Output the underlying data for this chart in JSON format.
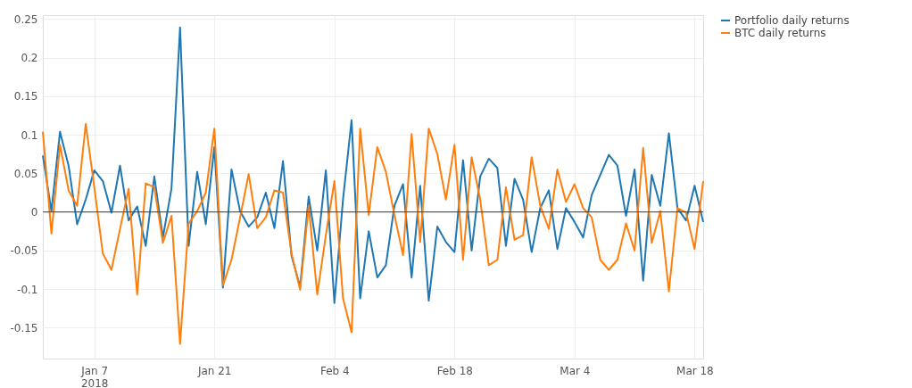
{
  "chart_data": {
    "type": "line",
    "x": [
      "2018-01-01",
      "2018-01-02",
      "2018-01-03",
      "2018-01-04",
      "2018-01-05",
      "2018-01-06",
      "2018-01-07",
      "2018-01-08",
      "2018-01-09",
      "2018-01-10",
      "2018-01-11",
      "2018-01-12",
      "2018-01-13",
      "2018-01-14",
      "2018-01-15",
      "2018-01-16",
      "2018-01-17",
      "2018-01-18",
      "2018-01-19",
      "2018-01-20",
      "2018-01-21",
      "2018-01-22",
      "2018-01-23",
      "2018-01-24",
      "2018-01-25",
      "2018-01-26",
      "2018-01-27",
      "2018-01-28",
      "2018-01-29",
      "2018-01-30",
      "2018-01-31",
      "2018-02-01",
      "2018-02-02",
      "2018-02-03",
      "2018-02-04",
      "2018-02-05",
      "2018-02-06",
      "2018-02-07",
      "2018-02-08",
      "2018-02-09",
      "2018-02-10",
      "2018-02-11",
      "2018-02-12",
      "2018-02-13",
      "2018-02-14",
      "2018-02-15",
      "2018-02-16",
      "2018-02-17",
      "2018-02-18",
      "2018-02-19",
      "2018-02-20",
      "2018-02-21",
      "2018-02-22",
      "2018-02-23",
      "2018-02-24",
      "2018-02-25",
      "2018-02-26",
      "2018-02-27",
      "2018-02-28",
      "2018-03-01",
      "2018-03-02",
      "2018-03-03",
      "2018-03-04",
      "2018-03-05",
      "2018-03-06",
      "2018-03-07",
      "2018-03-08",
      "2018-03-09",
      "2018-03-10",
      "2018-03-11",
      "2018-03-12",
      "2018-03-13",
      "2018-03-14",
      "2018-03-15",
      "2018-03-16",
      "2018-03-17",
      "2018-03-18",
      "2018-03-19"
    ],
    "series": [
      {
        "name": "Portfolio daily returns",
        "color": "#1f77b4",
        "values": [
          0.073,
          0.001,
          0.104,
          0.06,
          -0.016,
          0.016,
          0.054,
          0.04,
          -0.001,
          0.06,
          -0.011,
          0.007,
          -0.044,
          0.046,
          -0.033,
          0.03,
          0.239,
          -0.044,
          0.052,
          -0.016,
          0.084,
          -0.098,
          0.055,
          0.001,
          -0.019,
          -0.007,
          0.025,
          -0.021,
          0.066,
          -0.057,
          -0.097,
          0.02,
          -0.05,
          0.054,
          -0.118,
          0.016,
          0.119,
          -0.112,
          -0.025,
          -0.085,
          -0.069,
          0.008,
          0.036,
          -0.085,
          0.034,
          -0.115,
          -0.019,
          -0.039,
          -0.052,
          0.067,
          -0.05,
          0.046,
          0.069,
          0.057,
          -0.044,
          0.043,
          0.016,
          -0.052,
          0.005,
          0.028,
          -0.048,
          0.005,
          -0.013,
          -0.033,
          0.022,
          0.048,
          0.074,
          0.06,
          -0.005,
          0.055,
          -0.089,
          0.048,
          0.008,
          0.102,
          0.005,
          -0.011,
          0.034,
          -0.013
        ]
      },
      {
        "name": "BTC daily returns",
        "color": "#ff7f0e",
        "values": [
          0.104,
          -0.028,
          0.087,
          0.028,
          0.008,
          0.114,
          0.032,
          -0.054,
          -0.075,
          -0.022,
          0.03,
          -0.107,
          0.037,
          0.032,
          -0.04,
          -0.005,
          -0.171,
          -0.015,
          0.001,
          0.025,
          0.108,
          -0.095,
          -0.062,
          -0.007,
          0.049,
          -0.021,
          -0.007,
          0.028,
          0.025,
          -0.054,
          -0.101,
          0.008,
          -0.107,
          -0.03,
          0.04,
          -0.112,
          -0.156,
          0.108,
          -0.004,
          0.084,
          0.052,
          -0.004,
          -0.056,
          0.101,
          -0.039,
          0.108,
          0.075,
          0.016,
          0.087,
          -0.062,
          0.071,
          0.016,
          -0.069,
          -0.062,
          0.032,
          -0.036,
          -0.03,
          0.071,
          0.008,
          -0.022,
          0.055,
          0.013,
          0.036,
          0.005,
          -0.007,
          -0.062,
          -0.075,
          -0.062,
          -0.015,
          -0.05,
          0.083,
          -0.04,
          0.001,
          -0.103,
          0.005,
          -0.001,
          -0.048,
          0.04
        ]
      }
    ],
    "xlim": [
      "2018-01-01",
      "2018-03-19"
    ],
    "xticks": [
      {
        "value": "2018-01-07",
        "label": "Jan 7\n2018"
      },
      {
        "value": "2018-01-21",
        "label": "Jan 21"
      },
      {
        "value": "2018-02-04",
        "label": "Feb 4"
      },
      {
        "value": "2018-02-18",
        "label": "Feb 18"
      },
      {
        "value": "2018-03-04",
        "label": "Mar 4"
      },
      {
        "value": "2018-03-18",
        "label": "Mar 18"
      }
    ],
    "ylim": [
      -0.19,
      0.255
    ],
    "yticks": [
      -0.15,
      -0.1,
      -0.05,
      0,
      0.05,
      0.1,
      0.15,
      0.2,
      0.25
    ],
    "ref_lines": [
      {
        "axis": "y",
        "value": 0,
        "color": "#444444"
      }
    ],
    "grid": true,
    "legend": "top right"
  }
}
